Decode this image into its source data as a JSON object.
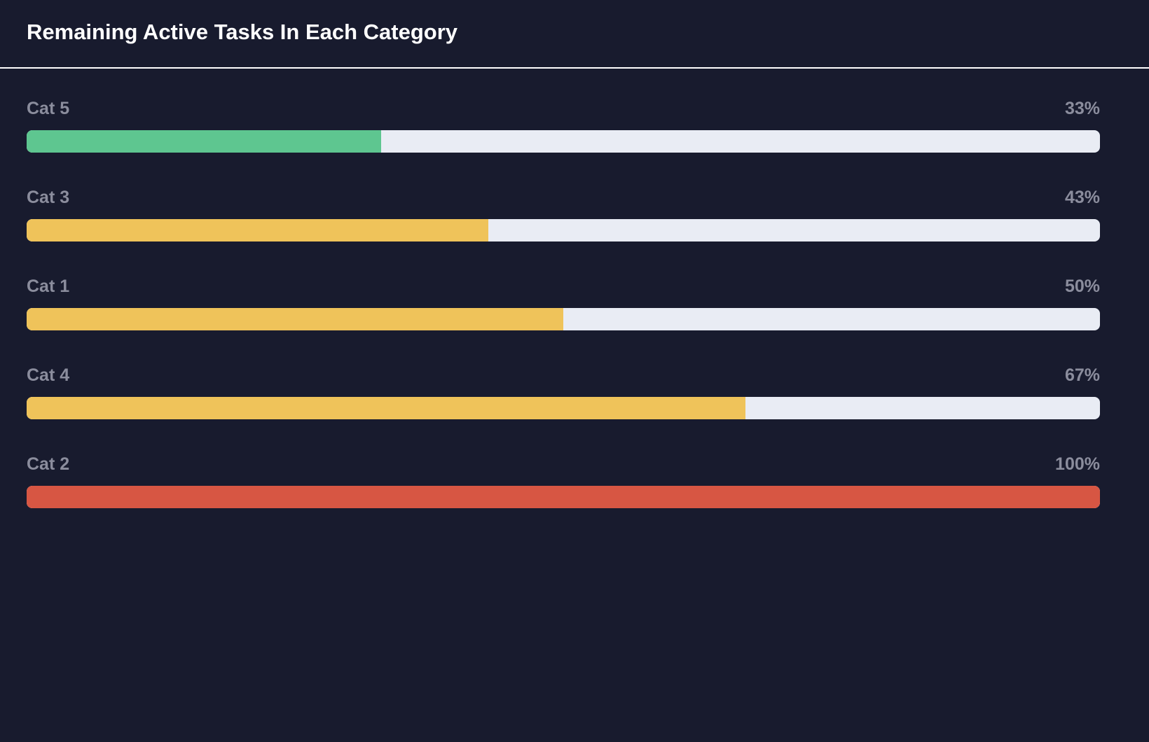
{
  "title": "Remaining Active Tasks In Each Category",
  "colors": {
    "background": "#181b2e",
    "track": "#e9ecf4",
    "green": "#5ec690",
    "yellow": "#efc35a",
    "red": "#d75643"
  },
  "categories": [
    {
      "label": "Cat 5",
      "percent_text": "33%",
      "fraction": 0.33,
      "color": "#5ec690"
    },
    {
      "label": "Cat 3",
      "percent_text": "43%",
      "fraction": 0.43,
      "color": "#efc35a"
    },
    {
      "label": "Cat 1",
      "percent_text": "50%",
      "fraction": 0.5,
      "color": "#efc35a"
    },
    {
      "label": "Cat 4",
      "percent_text": "67%",
      "fraction": 0.67,
      "color": "#efc35a"
    },
    {
      "label": "Cat 2",
      "percent_text": "100%",
      "fraction": 1.0,
      "color": "#d75643"
    }
  ]
}
